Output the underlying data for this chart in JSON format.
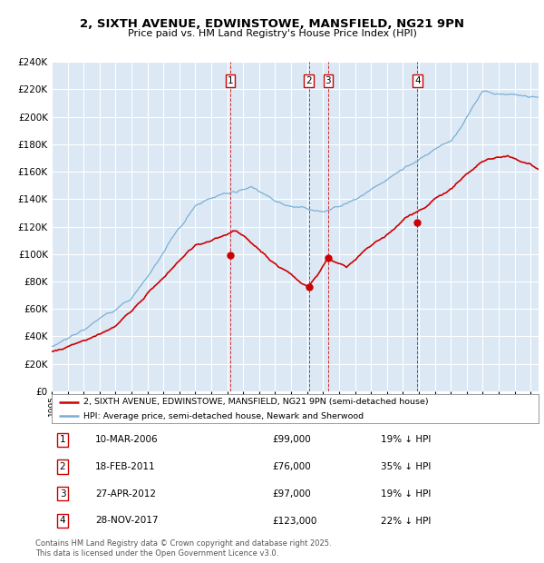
{
  "title": "2, SIXTH AVENUE, EDWINSTOWE, MANSFIELD, NG21 9PN",
  "subtitle": "Price paid vs. HM Land Registry's House Price Index (HPI)",
  "ylim": [
    0,
    240000
  ],
  "yticks": [
    0,
    20000,
    40000,
    60000,
    80000,
    100000,
    120000,
    140000,
    160000,
    180000,
    200000,
    220000,
    240000
  ],
  "xlim_start": 1995.0,
  "xlim_end": 2025.5,
  "background_color": "#dce9f5",
  "grid_color": "#ffffff",
  "red_color": "#cc0000",
  "blue_color": "#7bafd4",
  "transactions": [
    {
      "num": 1,
      "date": "10-MAR-2006",
      "price": 99000,
      "pct": "19%",
      "dir": "↓",
      "year": 2006.19
    },
    {
      "num": 2,
      "date": "18-FEB-2011",
      "price": 76000,
      "pct": "35%",
      "dir": "↓",
      "year": 2011.12
    },
    {
      "num": 3,
      "date": "27-APR-2012",
      "price": 97000,
      "pct": "19%",
      "dir": "↓",
      "year": 2012.32
    },
    {
      "num": 4,
      "date": "28-NOV-2017",
      "price": 123000,
      "pct": "22%",
      "dir": "↓",
      "year": 2017.91
    }
  ],
  "legend_property": "2, SIXTH AVENUE, EDWINSTOWE, MANSFIELD, NG21 9PN (semi-detached house)",
  "legend_hpi": "HPI: Average price, semi-detached house, Newark and Sherwood",
  "footer": "Contains HM Land Registry data © Crown copyright and database right 2025.\nThis data is licensed under the Open Government Licence v3.0."
}
